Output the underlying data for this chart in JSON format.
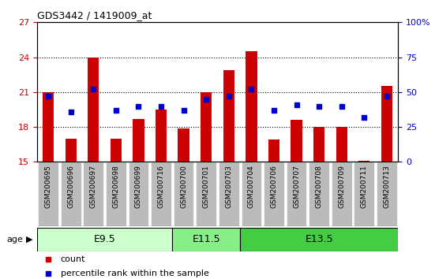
{
  "title": "GDS3442 / 1419009_at",
  "samples": [
    "GSM200695",
    "GSM200696",
    "GSM200697",
    "GSM200698",
    "GSM200699",
    "GSM200716",
    "GSM200700",
    "GSM200701",
    "GSM200703",
    "GSM200704",
    "GSM200706",
    "GSM200707",
    "GSM200708",
    "GSM200709",
    "GSM200711",
    "GSM200713"
  ],
  "bar_values": [
    21.0,
    17.0,
    24.0,
    17.0,
    18.7,
    19.5,
    17.9,
    21.0,
    22.9,
    24.5,
    16.9,
    18.6,
    18.0,
    18.0,
    15.1,
    21.5
  ],
  "blue_values": [
    47,
    36,
    52,
    37,
    40,
    40,
    37,
    45,
    47,
    52,
    37,
    41,
    40,
    40,
    32,
    47
  ],
  "bar_bottom": 15,
  "ylim_left": [
    15,
    27
  ],
  "ylim_right": [
    0,
    100
  ],
  "yticks_left": [
    15,
    18,
    21,
    24,
    27
  ],
  "yticks_right": [
    0,
    25,
    50,
    75,
    100
  ],
  "ytick_labels_right": [
    "0",
    "25",
    "50",
    "75",
    "100%"
  ],
  "bar_color": "#cc0000",
  "blue_color": "#0000cc",
  "age_groups": [
    {
      "label": "E9.5",
      "start": 0,
      "end": 6
    },
    {
      "label": "E11.5",
      "start": 6,
      "end": 9
    },
    {
      "label": "E13.5",
      "start": 9,
      "end": 16
    }
  ],
  "age_group_colors": [
    "#ccffcc",
    "#88ee88",
    "#44cc44"
  ],
  "age_label": "age",
  "legend_count_label": "count",
  "legend_pct_label": "percentile rank within the sample",
  "left_tick_color": "#cc0000",
  "right_tick_color": "#0000cc",
  "tick_bg_color": "#bbbbbb",
  "plot_bg_color": "#ffffff",
  "outer_bg_color": "#ffffff",
  "grid_yticks": [
    18,
    21,
    24
  ]
}
